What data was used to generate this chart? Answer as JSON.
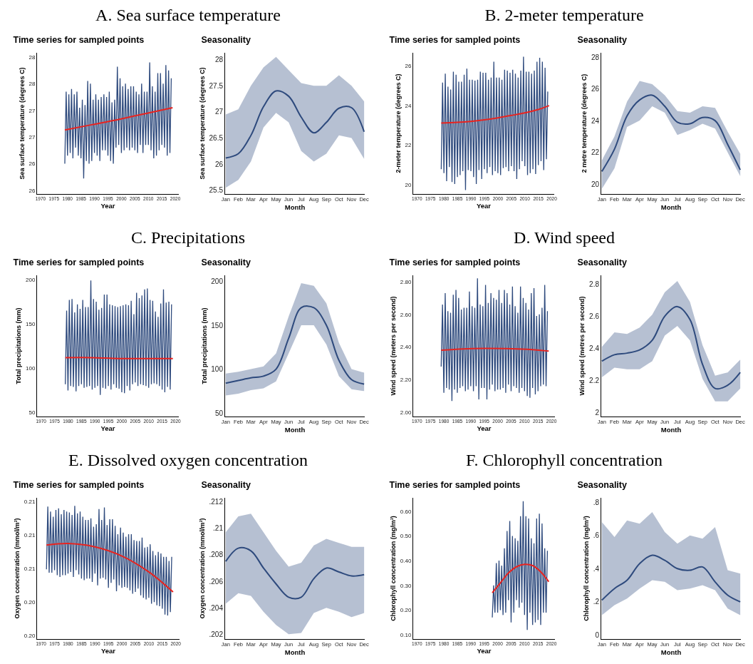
{
  "chart_data": [
    {
      "type": "line",
      "title": "A. Sea surface temperature",
      "subtitle": "Time series for sampled points",
      "xlabel": "Year",
      "ylabel": "Sea surface temperature (degrees C)",
      "xlim": [
        1968.7,
        2021.3
      ],
      "xticks": [
        1970,
        1975,
        1980,
        1985,
        1990,
        1995,
        2000,
        2005,
        2010,
        2015,
        2020
      ],
      "ylim": [
        25.68,
        28.33
      ],
      "yticks": [
        {
          "value": 25.75,
          "label": "26"
        },
        {
          "value": 26.25,
          "label": "26"
        },
        {
          "value": 26.75,
          "label": "27"
        },
        {
          "value": 27.25,
          "label": "27"
        },
        {
          "value": 27.75,
          "label": "28"
        },
        {
          "value": 28.25,
          "label": "28"
        }
      ],
      "series": [
        {
          "color": "#2e4a7d",
          "x": [
            1979,
            1979.5,
            1980,
            1980.5,
            1981,
            1981.5,
            1982,
            1982.5,
            1983,
            1983.5,
            1984,
            1984.5,
            1985,
            1985.5,
            1986,
            1986.5,
            1987,
            1987.5,
            1988,
            1988.5,
            1989,
            1989.5,
            1990,
            1990.5,
            1991,
            1991.5,
            1992,
            1992.5,
            1993,
            1993.5,
            1994,
            1994.5,
            1995,
            1995.5,
            1996,
            1996.5,
            1997,
            1997.5,
            1998,
            1998.5,
            1999,
            1999.5,
            2000,
            2000.5,
            2001,
            2001.5,
            2002,
            2002.5,
            2003,
            2003.5,
            2004,
            2004.5,
            2005,
            2005.5,
            2006,
            2006.5,
            2007,
            2007.5,
            2008,
            2008.5,
            2009,
            2009.5,
            2010,
            2010.5,
            2011,
            2011.5,
            2012,
            2012.5,
            2013,
            2013.5,
            2014,
            2014.5,
            2015,
            2015.5,
            2016,
            2016.5,
            2017,
            2017.5,
            2018,
            2018.5
          ],
          "values": [
            26.25,
            27.6,
            26.4,
            27.55,
            26.45,
            27.65,
            26.35,
            27.55,
            26.55,
            27.6,
            26.4,
            27.3,
            26.35,
            27.45,
            25.97,
            27.35,
            26.3,
            27.8,
            26.25,
            27.75,
            26.3,
            27.45,
            26.45,
            27.55,
            26.4,
            27.45,
            26.3,
            27.5,
            26.5,
            27.55,
            26.5,
            27.5,
            26.4,
            27.6,
            26.3,
            27.4,
            26.25,
            27.45,
            26.55,
            28.07,
            26.6,
            27.85,
            26.45,
            27.7,
            26.5,
            27.75,
            26.55,
            27.65,
            26.5,
            27.7,
            26.55,
            27.7,
            26.5,
            27.6,
            26.45,
            27.55,
            26.6,
            27.75,
            26.45,
            27.6,
            26.6,
            27.6,
            26.6,
            28.15,
            26.5,
            27.7,
            26.35,
            27.6,
            26.4,
            27.95,
            26.5,
            27.95,
            26.6,
            27.75,
            26.55,
            28.1,
            26.4,
            28.0,
            26.45,
            27.85
          ]
        },
        {
          "color": "#e8231f",
          "x": [
            1979,
            1989,
            1999,
            2009,
            2019
          ],
          "values": [
            26.88,
            26.98,
            27.08,
            27.19,
            27.3
          ]
        }
      ]
    },
    {
      "type": "line",
      "title": "Seasonality",
      "xlabel": "Month",
      "ylabel": "Sea surface temperature (degrees C)",
      "categories": [
        "Jan",
        "Feb",
        "Mar",
        "Apr",
        "May",
        "Jun",
        "Jul",
        "Aug",
        "Sep",
        "Oct",
        "Nov",
        "Dec"
      ],
      "ylim": [
        25.43,
        28.13
      ],
      "yticks": [
        25.5,
        26,
        26.5,
        27,
        27.5,
        28
      ],
      "series": [
        {
          "color": "#2e4a7d",
          "values": [
            26.12,
            26.2,
            26.55,
            27.1,
            27.4,
            27.3,
            26.9,
            26.6,
            26.8,
            27.07,
            27.08,
            26.62
          ],
          "lower": [
            25.55,
            25.7,
            26.05,
            26.7,
            26.98,
            26.8,
            26.25,
            26.05,
            26.2,
            26.55,
            26.5,
            26.1
          ],
          "upper": [
            26.95,
            27.05,
            27.5,
            27.85,
            28.05,
            27.8,
            27.55,
            27.5,
            27.5,
            27.7,
            27.5,
            27.2
          ]
        }
      ]
    },
    {
      "type": "line",
      "title": "B. 2-meter temperature",
      "subtitle": "Time series for sampled points",
      "xlabel": "Year",
      "ylabel": "2-meter temperature (degrees C)",
      "xlim": [
        1968.6,
        2020.9
      ],
      "xticks": [
        1970,
        1975,
        1980,
        1985,
        1990,
        1995,
        2000,
        2005,
        2010,
        2015,
        2020
      ],
      "ylim": [
        19.55,
        26.65
      ],
      "yticks": [
        20,
        22,
        24,
        26
      ],
      "series": [
        {
          "color": "#2e4a7d",
          "x": [
            1979,
            1979.5,
            1980,
            1980.5,
            1981,
            1981.5,
            1982,
            1982.5,
            1983,
            1983.5,
            1984,
            1984.5,
            1985,
            1985.5,
            1986,
            1986.5,
            1987,
            1987.5,
            1988,
            1988.5,
            1989,
            1989.5,
            1990,
            1990.5,
            1991,
            1991.5,
            1992,
            1992.5,
            1993,
            1993.5,
            1994,
            1994.5,
            1995,
            1995.5,
            1996,
            1996.5,
            1997,
            1997.5,
            1998,
            1998.5,
            1999,
            1999.5,
            2000,
            2000.5,
            2001,
            2001.5,
            2002,
            2002.5,
            2003,
            2003.5,
            2004,
            2004.5,
            2005,
            2005.5,
            2006,
            2006.5,
            2007,
            2007.5,
            2008,
            2008.5,
            2009,
            2009.5,
            2010,
            2010.5,
            2011,
            2011.5,
            2012,
            2012.5,
            2013,
            2013.5,
            2014,
            2014.5,
            2015,
            2015.5,
            2016,
            2016.5,
            2017,
            2017.5,
            2018,
            2018.5
          ],
          "values": [
            20.8,
            25.15,
            20.6,
            25.6,
            20.2,
            24.95,
            20.9,
            24.8,
            20.15,
            25.7,
            20.05,
            25.55,
            20.4,
            25.2,
            20.5,
            25.2,
            20.7,
            25.55,
            19.75,
            25.85,
            20.75,
            25.3,
            20.7,
            25.3,
            20.4,
            25.25,
            20.05,
            25.3,
            20.75,
            25.7,
            20.3,
            25.65,
            20.8,
            25.65,
            20.6,
            25.3,
            20.9,
            25.4,
            20.5,
            26.2,
            20.7,
            25.4,
            20.6,
            25.4,
            20.5,
            25.3,
            20.85,
            25.8,
            20.9,
            25.75,
            20.7,
            25.65,
            20.95,
            25.8,
            20.7,
            25.6,
            20.3,
            25.4,
            20.8,
            25.75,
            21.2,
            26.45,
            20.95,
            25.7,
            20.5,
            25.7,
            20.6,
            25.6,
            20.8,
            25.75,
            20.55,
            26.2,
            21.0,
            26.4,
            21.2,
            26.2,
            20.75,
            25.9,
            21.3,
            24.7
          ]
        },
        {
          "color": "#e8231f",
          "x": [
            1979,
            1985,
            1990,
            1995,
            2000,
            2005,
            2010,
            2015,
            2019
          ],
          "values": [
            23.12,
            23.15,
            23.2,
            23.28,
            23.38,
            23.5,
            23.63,
            23.8,
            23.99
          ]
        }
      ]
    },
    {
      "type": "line",
      "title": "Seasonality",
      "xlabel": "Month",
      "ylabel": "2 metre temperature (degrees C)",
      "categories": [
        "Jan",
        "Feb",
        "Mar",
        "Apr",
        "May",
        "Jun",
        "Jul",
        "Aug",
        "Sep",
        "Oct",
        "Nov",
        "Dec"
      ],
      "ylim": [
        19.38,
        28.27
      ],
      "yticks": [
        20,
        22,
        24,
        26,
        28
      ],
      "series": [
        {
          "color": "#2e4a7d",
          "values": [
            20.8,
            22.2,
            24.3,
            25.3,
            25.6,
            24.9,
            23.9,
            23.8,
            24.2,
            24.0,
            22.5,
            20.9
          ],
          "lower": [
            19.7,
            21.0,
            23.6,
            24.0,
            24.9,
            24.5,
            23.1,
            23.4,
            23.8,
            23.5,
            22.0,
            20.5
          ],
          "upper": [
            21.5,
            23.0,
            25.2,
            26.5,
            26.3,
            25.6,
            24.6,
            24.5,
            24.9,
            24.8,
            23.3,
            21.9
          ]
        }
      ]
    },
    {
      "type": "line",
      "title": "C. Precipitations",
      "subtitle": "Time series for sampled points",
      "xlabel": "Year",
      "ylabel": "Total precipitations (mm)",
      "xlim": [
        1968.5,
        2021.2
      ],
      "xticks": [
        1970,
        1975,
        1980,
        1985,
        1990,
        1995,
        2000,
        2005,
        2010,
        2015,
        2020
      ],
      "ylim": [
        45.6,
        204.8
      ],
      "yticks": [
        50,
        100,
        150,
        200
      ],
      "series": [
        {
          "color": "#2e4a7d",
          "x": [
            1979,
            1979.5,
            1980,
            1980.5,
            1981,
            1981.5,
            1982,
            1982.5,
            1983,
            1983.5,
            1984,
            1984.5,
            1985,
            1985.5,
            1986,
            1986.5,
            1987,
            1987.5,
            1988,
            1988.5,
            1989,
            1989.5,
            1990,
            1990.5,
            1991,
            1991.5,
            1992,
            1992.5,
            1993,
            1993.5,
            1994,
            1994.5,
            1995,
            1995.5,
            1996,
            1996.5,
            1997,
            1997.5,
            1998,
            1998.5,
            1999,
            1999.5,
            2000,
            2000.5,
            2001,
            2001.5,
            2002,
            2002.5,
            2003,
            2003.5,
            2004,
            2004.5,
            2005,
            2005.5,
            2006,
            2006.5,
            2007,
            2007.5,
            2008,
            2008.5,
            2009,
            2009.5,
            2010,
            2010.5,
            2011,
            2011.5,
            2012,
            2012.5,
            2013,
            2013.5,
            2014,
            2014.5,
            2015,
            2015.5,
            2016,
            2016.5,
            2017,
            2017.5,
            2018,
            2018.5
          ],
          "values": [
            82,
            165,
            75,
            177,
            80,
            178,
            79,
            163,
            74,
            172,
            80,
            167,
            82,
            177,
            78,
            169,
            79,
            169,
            80,
            199,
            76,
            178,
            78,
            175,
            80,
            166,
            70,
            168,
            78,
            183,
            77,
            183,
            80,
            172,
            76,
            171,
            82,
            170,
            78,
            169,
            77,
            170,
            73,
            171,
            72,
            172,
            80,
            171,
            75,
            176,
            82,
            161,
            84,
            185,
            80,
            179,
            82,
            182,
            81,
            189,
            80,
            190,
            78,
            177,
            82,
            176,
            83,
            164,
            82,
            158,
            80,
            173,
            76,
            189,
            73,
            174,
            79,
            175,
            76,
            172
          ]
        },
        {
          "color": "#e8231f",
          "x": [
            1979,
            1989,
            1999,
            2009,
            2019
          ],
          "values": [
            112,
            112,
            111,
            111,
            111
          ]
        }
      ]
    },
    {
      "type": "line",
      "title": "Seasonality",
      "xlabel": "Month",
      "ylabel": "Total precipitations (mm)",
      "categories": [
        "Jan",
        "Feb",
        "Mar",
        "Apr",
        "May",
        "Jun",
        "Jul",
        "Aug",
        "Sep",
        "Oct",
        "Nov",
        "Dec"
      ],
      "ylim": [
        46,
        206.9
      ],
      "yticks": [
        50,
        100,
        150,
        200
      ],
      "series": [
        {
          "color": "#2e4a7d",
          "values": [
            84,
            87,
            90,
            92,
            100,
            135,
            170,
            170,
            150,
            110,
            88,
            83
          ],
          "lower": [
            70,
            72,
            76,
            78,
            86,
            118,
            150,
            150,
            128,
            92,
            77,
            75
          ],
          "upper": [
            95,
            97,
            100,
            103,
            118,
            160,
            198,
            195,
            175,
            130,
            100,
            96
          ]
        }
      ]
    },
    {
      "type": "line",
      "title": "D. Wind speed",
      "subtitle": "Time series for sampled points",
      "xlabel": "Year",
      "ylabel": "Wind speed (meters per second)",
      "xlim": [
        1968.6,
        2021.3
      ],
      "xticks": [
        1970,
        1975,
        1980,
        1985,
        1990,
        1995,
        2000,
        2005,
        2010,
        2015,
        2020
      ],
      "ylim": [
        1.975,
        2.839
      ],
      "yticks": [
        {
          "value": 2,
          "label": "2.00"
        },
        {
          "value": 2.2,
          "label": "2.20"
        },
        {
          "value": 2.4,
          "label": "2.40"
        },
        {
          "value": 2.6,
          "label": "2.60"
        },
        {
          "value": 2.8,
          "label": "2.80"
        }
      ],
      "series": [
        {
          "color": "#2e4a7d",
          "x": [
            1979,
            1979.5,
            1980,
            1980.5,
            1981,
            1981.5,
            1982,
            1982.5,
            1983,
            1983.5,
            1984,
            1984.5,
            1985,
            1985.5,
            1986,
            1986.5,
            1987,
            1987.5,
            1988,
            1988.5,
            1989,
            1989.5,
            1990,
            1990.5,
            1991,
            1991.5,
            1992,
            1992.5,
            1993,
            1993.5,
            1994,
            1994.5,
            1995,
            1995.5,
            1996,
            1996.5,
            1997,
            1997.5,
            1998,
            1998.5,
            1999,
            1999.5,
            2000,
            2000.5,
            2001,
            2001.5,
            2002,
            2002.5,
            2003,
            2003.5,
            2004,
            2004.5,
            2005,
            2005.5,
            2006,
            2006.5,
            2007,
            2007.5,
            2008,
            2008.5,
            2009,
            2009.5,
            2010,
            2010.5,
            2011,
            2011.5,
            2012,
            2012.5,
            2013,
            2013.5,
            2014,
            2014.5,
            2015,
            2015.5,
            2016,
            2016.5,
            2017,
            2017.5,
            2018,
            2018.5
          ],
          "values": [
            2.28,
            2.66,
            2.12,
            2.73,
            2.15,
            2.62,
            2.14,
            2.61,
            2.07,
            2.72,
            2.14,
            2.75,
            2.12,
            2.7,
            2.15,
            2.63,
            2.16,
            2.64,
            2.13,
            2.64,
            2.14,
            2.74,
            2.16,
            2.65,
            2.13,
            2.64,
            2.16,
            2.82,
            2.08,
            2.66,
            2.15,
            2.65,
            2.15,
            2.78,
            2.08,
            2.67,
            2.14,
            2.73,
            2.17,
            2.7,
            2.13,
            2.69,
            2.14,
            2.75,
            2.14,
            2.67,
            2.15,
            2.75,
            2.12,
            2.73,
            2.17,
            2.66,
            2.13,
            2.77,
            2.16,
            2.65,
            2.15,
            2.61,
            2.12,
            2.77,
            2.15,
            2.7,
            2.13,
            2.67,
            2.1,
            2.63,
            2.09,
            2.73,
            2.15,
            2.76,
            2.11,
            2.59,
            2.13,
            2.6,
            2.16,
            2.64,
            2.17,
            2.78,
            2.16,
            2.62
          ]
        },
        {
          "color": "#e8231f",
          "x": [
            1979,
            1987,
            1995,
            2003,
            2011,
            2019
          ],
          "values": [
            2.381,
            2.389,
            2.392,
            2.391,
            2.386,
            2.375
          ]
        }
      ]
    },
    {
      "type": "line",
      "title": "Seasonality",
      "xlabel": "Month",
      "ylabel": "Wind speed (metres per second)",
      "categories": [
        "Jan",
        "Feb",
        "Mar",
        "Apr",
        "May",
        "Jun",
        "Jul",
        "Aug",
        "Sep",
        "Oct",
        "Nov",
        "Dec"
      ],
      "ylim": [
        1.975,
        2.855
      ],
      "yticks": [
        2,
        2.2,
        2.4,
        2.6,
        2.8
      ],
      "series": [
        {
          "color": "#2e4a7d",
          "values": [
            2.32,
            2.36,
            2.37,
            2.39,
            2.45,
            2.6,
            2.66,
            2.58,
            2.3,
            2.15,
            2.17,
            2.25
          ],
          "lower": [
            2.22,
            2.28,
            2.27,
            2.27,
            2.32,
            2.48,
            2.54,
            2.45,
            2.21,
            2.07,
            2.07,
            2.15
          ],
          "upper": [
            2.41,
            2.5,
            2.49,
            2.53,
            2.61,
            2.75,
            2.82,
            2.69,
            2.42,
            2.23,
            2.25,
            2.33
          ]
        }
      ]
    },
    {
      "type": "line",
      "title": "E. Dissolved oxygen concentration",
      "subtitle": "Time series for sampled points",
      "xlabel": "Year",
      "ylabel": "Oxygen concentration (mmol/m³)",
      "xlim": [
        1968.5,
        2021.4
      ],
      "xticks": [
        1970,
        1975,
        1980,
        1985,
        1990,
        1995,
        2000,
        2005,
        2010,
        2015,
        2020
      ],
      "ylim": [
        0.19758,
        0.21445
      ],
      "yticks": [
        {
          "value": 0.198,
          "label": "0.20"
        },
        {
          "value": 0.202,
          "label": "0.20"
        },
        {
          "value": 0.206,
          "label": "0.21"
        },
        {
          "value": 0.21,
          "label": "0.21"
        },
        {
          "value": 0.214,
          "label": "0.21"
        }
      ],
      "series": [
        {
          "color": "#2e4a7d",
          "x": [
            1972,
            1972.5,
            1973,
            1973.5,
            1974,
            1974.5,
            1975,
            1975.5,
            1976,
            1976.5,
            1977,
            1977.5,
            1978,
            1978.5,
            1979,
            1979.5,
            1980,
            1980.5,
            1981,
            1981.5,
            1982,
            1982.5,
            1983,
            1983.5,
            1984,
            1984.5,
            1985,
            1985.5,
            1986,
            1986.5,
            1987,
            1987.5,
            1988,
            1988.5,
            1989,
            1989.5,
            1990,
            1990.5,
            1991,
            1991.5,
            1992,
            1992.5,
            1993,
            1993.5,
            1994,
            1994.5,
            1995,
            1995.5,
            1996,
            1996.5,
            1997,
            1997.5,
            1998,
            1998.5,
            1999,
            1999.5,
            2000,
            2000.5,
            2001,
            2001.5,
            2002,
            2002.5,
            2003,
            2003.5,
            2004,
            2004.5,
            2005,
            2005.5,
            2006,
            2006.5,
            2007,
            2007.5,
            2008,
            2008.5,
            2009,
            2009.5,
            2010,
            2010.5,
            2011,
            2011.5,
            2012,
            2012.5,
            2013,
            2013.5,
            2014,
            2014.5,
            2015,
            2015.5,
            2016,
            2016.5,
            2017,
            2017.5,
            2018,
            2018.5
          ],
          "values": [
            0.2059,
            0.2134,
            0.2055,
            0.2128,
            0.2055,
            0.2122,
            0.2058,
            0.213,
            0.2052,
            0.2132,
            0.205,
            0.2125,
            0.2052,
            0.213,
            0.2052,
            0.2128,
            0.2054,
            0.2127,
            0.2056,
            0.2124,
            0.205,
            0.2135,
            0.2058,
            0.2126,
            0.2053,
            0.2128,
            0.2048,
            0.2122,
            0.2046,
            0.2118,
            0.2048,
            0.2118,
            0.2048,
            0.212,
            0.2044,
            0.211,
            0.2054,
            0.2113,
            0.204,
            0.2131,
            0.2048,
            0.2118,
            0.2049,
            0.2133,
            0.2047,
            0.2112,
            0.2037,
            0.2119,
            0.2043,
            0.2119,
            0.2047,
            0.2111,
            0.2033,
            0.2101,
            0.204,
            0.2109,
            0.2037,
            0.2103,
            0.2038,
            0.2098,
            0.2037,
            0.2101,
            0.2034,
            0.2101,
            0.203,
            0.2094,
            0.2032,
            0.2093,
            0.2036,
            0.2093,
            0.2028,
            0.2097,
            0.2025,
            0.2085,
            0.2023,
            0.2086,
            0.2025,
            0.2089,
            0.2018,
            0.2081,
            0.202,
            0.2076,
            0.2016,
            0.208,
            0.2015,
            0.2078,
            0.2012,
            0.2074,
            0.2005,
            0.2074,
            0.2004,
            0.2069,
            0.2008,
            0.2074
          ]
        },
        {
          "color": "#e8231f",
          "x": [
            1972,
            1980,
            1990,
            2000,
            2010,
            2019
          ],
          "values": [
            0.2088,
            0.209,
            0.2086,
            0.2075,
            0.2056,
            0.2032
          ]
        }
      ]
    },
    {
      "type": "line",
      "title": "Seasonality",
      "xlabel": "Month",
      "ylabel": "Oxygen concentration (mmol/m³)",
      "categories": [
        "Jan",
        "Feb",
        "Mar",
        "Apr",
        "May",
        "Jun",
        "Jul",
        "Aug",
        "Sep",
        "Oct",
        "Nov",
        "Dec"
      ],
      "ylim": [
        0.20164,
        0.2123
      ],
      "yticks": [
        {
          "value": 0.202,
          "label": ".202"
        },
        {
          "value": 0.204,
          "label": ".204"
        },
        {
          "value": 0.206,
          "label": ".206"
        },
        {
          "value": 0.208,
          "label": ".208"
        },
        {
          "value": 0.21,
          "label": ".21"
        },
        {
          "value": 0.212,
          "label": ".212"
        }
      ],
      "series": [
        {
          "color": "#2e4a7d",
          "values": [
            0.2075,
            0.2085,
            0.2083,
            0.207,
            0.2058,
            0.2048,
            0.2048,
            0.2062,
            0.207,
            0.2067,
            0.2064,
            0.2065
          ],
          "lower": [
            0.2043,
            0.2051,
            0.2049,
            0.2037,
            0.2027,
            0.202,
            0.2021,
            0.2036,
            0.204,
            0.2037,
            0.2033,
            0.2036
          ],
          "upper": [
            0.2097,
            0.2109,
            0.2111,
            0.2097,
            0.2083,
            0.2071,
            0.2074,
            0.2087,
            0.2092,
            0.2089,
            0.2086,
            0.2086
          ]
        }
      ]
    },
    {
      "type": "line",
      "title": "F. Chlorophyll concentration",
      "subtitle": "Time series for sampled points",
      "xlabel": "Year",
      "ylabel": "Chlorophyll concentration (mg/m³)",
      "xlim": [
        1968.6,
        2021.3
      ],
      "xticks": [
        1970,
        1975,
        1980,
        1985,
        1990,
        1995,
        2000,
        2005,
        2010,
        2015,
        2020
      ],
      "ylim": [
        0.083,
        0.654
      ],
      "yticks": [
        {
          "value": 0.1,
          "label": "0.10"
        },
        {
          "value": 0.2,
          "label": "0.20"
        },
        {
          "value": 0.3,
          "label": "0.30"
        },
        {
          "value": 0.4,
          "label": "0.40"
        },
        {
          "value": 0.5,
          "label": "0.50"
        },
        {
          "value": 0.6,
          "label": "0.60"
        }
      ],
      "series": [
        {
          "color": "#2e4a7d",
          "x": [
            1998,
            1998.5,
            1999,
            1999.5,
            2000,
            2000.5,
            2001,
            2001.5,
            2002,
            2002.5,
            2003,
            2003.5,
            2004,
            2004.5,
            2005,
            2005.5,
            2006,
            2006.5,
            2007,
            2007.5,
            2008,
            2008.5,
            2009,
            2009.5,
            2010,
            2010.5,
            2011,
            2011.5,
            2012,
            2012.5,
            2013,
            2013.5,
            2014,
            2014.5,
            2015,
            2015.5,
            2016,
            2016.5,
            2017,
            2017.5,
            2018,
            2018.5
          ],
          "values": [
            0.17,
            0.3,
            0.19,
            0.39,
            0.19,
            0.4,
            0.2,
            0.38,
            0.18,
            0.45,
            0.19,
            0.52,
            0.24,
            0.56,
            0.15,
            0.5,
            0.19,
            0.49,
            0.24,
            0.48,
            0.21,
            0.58,
            0.23,
            0.64,
            0.18,
            0.58,
            0.12,
            0.57,
            0.19,
            0.49,
            0.14,
            0.47,
            0.15,
            0.57,
            0.16,
            0.59,
            0.14,
            0.55,
            0.19,
            0.45,
            0.19,
            0.44
          ]
        },
        {
          "color": "#e8231f",
          "x": [
            1998,
            2001,
            2004,
            2007,
            2010,
            2013,
            2016,
            2019
          ],
          "values": [
            0.27,
            0.31,
            0.35,
            0.375,
            0.385,
            0.38,
            0.355,
            0.315
          ]
        }
      ]
    },
    {
      "type": "line",
      "title": "Seasonality",
      "xlabel": "Month",
      "ylabel": "Chlorophyll concentration (mg/m³)",
      "categories": [
        "Jan",
        "Feb",
        "Mar",
        "Apr",
        "May",
        "Jun",
        "Jul",
        "Aug",
        "Sep",
        "Oct",
        "Nov",
        "Dec"
      ],
      "ylim": [
        -0.024,
        0.826
      ],
      "yticks": [
        0,
        {
          "value": 0.2,
          "label": ".2"
        },
        {
          "value": 0.4,
          "label": ".4"
        },
        {
          "value": 0.6,
          "label": ".6"
        },
        {
          "value": 0.8,
          "label": ".8"
        }
      ],
      "series": [
        {
          "color": "#2e4a7d",
          "values": [
            0.21,
            0.28,
            0.33,
            0.43,
            0.48,
            0.45,
            0.4,
            0.39,
            0.41,
            0.32,
            0.24,
            0.2
          ],
          "lower": [
            0.12,
            0.18,
            0.22,
            0.28,
            0.33,
            0.32,
            0.27,
            0.28,
            0.3,
            0.27,
            0.16,
            0.12
          ],
          "upper": [
            0.68,
            0.59,
            0.69,
            0.67,
            0.74,
            0.62,
            0.55,
            0.6,
            0.58,
            0.65,
            0.39,
            0.37
          ]
        }
      ]
    }
  ]
}
